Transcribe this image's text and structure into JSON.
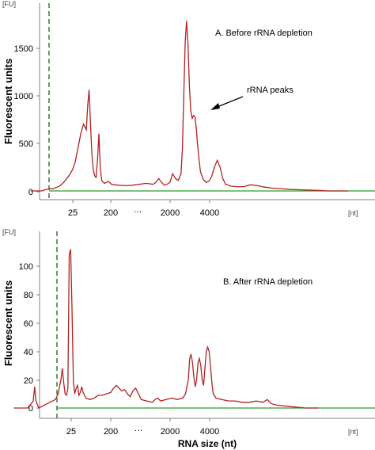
{
  "colors": {
    "trace": "#b22222",
    "baseline": "#2e9e2e",
    "marker": "#2e7d32",
    "axis": "#808080"
  },
  "chart_data": [
    {
      "type": "line",
      "title": "A. Before rRNA depletion",
      "ylabel": "Fluorescent units",
      "yunit": "[FU]",
      "xunit": "[nt]",
      "x_tick_labels": [
        "25",
        "200",
        "2000",
        "4000"
      ],
      "y_ticks": [
        0,
        500,
        1000,
        1500
      ],
      "ylim": [
        0,
        1800
      ],
      "annotation": {
        "text": "rRNA peaks",
        "arrow": true
      },
      "series": [
        {
          "values": [
            [
              22,
              0
            ],
            [
              26,
              0
            ],
            [
              30,
              0
            ],
            [
              33,
              15
            ],
            [
              36,
              25
            ],
            [
              38,
              20
            ],
            [
              40,
              35
            ],
            [
              42,
              45
            ],
            [
              44,
              65
            ],
            [
              46,
              95
            ],
            [
              48,
              130
            ],
            [
              50,
              170
            ],
            [
              52,
              220
            ],
            [
              54,
              300
            ],
            [
              56,
              450
            ],
            [
              58,
              600
            ],
            [
              60,
              700
            ],
            [
              62,
              640
            ],
            [
              63,
              900
            ],
            [
              64,
              1060
            ],
            [
              65,
              700
            ],
            [
              66,
              380
            ],
            [
              67,
              220
            ],
            [
              68,
              160
            ],
            [
              69,
              140
            ],
            [
              70,
              310
            ],
            [
              71,
              600
            ],
            [
              72,
              250
            ],
            [
              73,
              110
            ],
            [
              75,
              80
            ],
            [
              78,
              100
            ],
            [
              80,
              70
            ],
            [
              85,
              60
            ],
            [
              90,
              55
            ],
            [
              95,
              60
            ],
            [
              100,
              70
            ],
            [
              105,
              80
            ],
            [
              110,
              70
            ],
            [
              112,
              90
            ],
            [
              114,
              130
            ],
            [
              116,
              90
            ],
            [
              118,
              60
            ],
            [
              120,
              70
            ],
            [
              122,
              90
            ],
            [
              124,
              180
            ],
            [
              126,
              130
            ],
            [
              128,
              110
            ],
            [
              130,
              180
            ],
            [
              131,
              450
            ],
            [
              132,
              1000
            ],
            [
              133,
              1560
            ],
            [
              134,
              1780
            ],
            [
              135,
              1550
            ],
            [
              136,
              1100
            ],
            [
              137,
              840
            ],
            [
              138,
              760
            ],
            [
              139,
              790
            ],
            [
              140,
              780
            ],
            [
              141,
              650
            ],
            [
              142,
              470
            ],
            [
              143,
              320
            ],
            [
              144,
              200
            ],
            [
              146,
              120
            ],
            [
              148,
              90
            ],
            [
              150,
              100
            ],
            [
              152,
              150
            ],
            [
              154,
              250
            ],
            [
              156,
              320
            ],
            [
              158,
              250
            ],
            [
              160,
              130
            ],
            [
              162,
              70
            ],
            [
              166,
              50
            ],
            [
              170,
              45
            ],
            [
              175,
              45
            ],
            [
              180,
              65
            ],
            [
              185,
              55
            ],
            [
              190,
              40
            ],
            [
              195,
              30
            ],
            [
              200,
              25
            ],
            [
              210,
              15
            ],
            [
              220,
              10
            ],
            [
              230,
              5
            ],
            [
              235,
              0
            ],
            [
              240,
              0
            ],
            [
              250,
              0
            ]
          ]
        }
      ]
    },
    {
      "type": "line",
      "title": "B. After rRNA depletion",
      "ylabel": "Fluorescent units",
      "yunit": "[FU]",
      "xunit": "[nt]",
      "xlabel": "RNA size (nt)",
      "x_tick_labels": [
        "25",
        "200",
        "2000",
        "4000"
      ],
      "y_ticks": [
        0,
        20,
        40,
        60,
        80,
        100
      ],
      "ylim": [
        0,
        120
      ],
      "series": [
        {
          "values": [
            [
              10,
              0
            ],
            [
              15,
              0
            ],
            [
              20,
              0
            ],
            [
              24,
              5
            ],
            [
              25,
              15
            ],
            [
              26,
              5
            ],
            [
              28,
              0
            ],
            [
              32,
              2
            ],
            [
              36,
              4
            ],
            [
              40,
              6
            ],
            [
              42,
              10
            ],
            [
              44,
              20
            ],
            [
              45,
              28
            ],
            [
              46,
              18
            ],
            [
              47,
              10
            ],
            [
              48,
              9
            ],
            [
              49,
              14
            ],
            [
              50,
              108
            ],
            [
              51,
              112
            ],
            [
              52,
              70
            ],
            [
              53,
              18
            ],
            [
              54,
              10
            ],
            [
              55,
              14
            ],
            [
              56,
              16
            ],
            [
              57,
              9
            ],
            [
              58,
              11
            ],
            [
              59,
              15
            ],
            [
              60,
              11
            ],
            [
              62,
              7
            ],
            [
              65,
              6
            ],
            [
              68,
              7
            ],
            [
              71,
              9
            ],
            [
              74,
              9
            ],
            [
              77,
              10
            ],
            [
              80,
              11
            ],
            [
              82,
              14
            ],
            [
              84,
              16
            ],
            [
              86,
              14
            ],
            [
              88,
              12
            ],
            [
              90,
              13
            ],
            [
              92,
              10
            ],
            [
              94,
              8
            ],
            [
              96,
              12
            ],
            [
              98,
              14
            ],
            [
              100,
              10
            ],
            [
              102,
              6
            ],
            [
              106,
              5
            ],
            [
              110,
              4
            ],
            [
              112,
              6
            ],
            [
              114,
              7
            ],
            [
              116,
              5
            ],
            [
              120,
              6
            ],
            [
              124,
              7
            ],
            [
              128,
              6
            ],
            [
              132,
              7
            ],
            [
              134,
              10
            ],
            [
              136,
              20
            ],
            [
              137,
              35
            ],
            [
              138,
              38
            ],
            [
              139,
              32
            ],
            [
              140,
              22
            ],
            [
              141,
              15
            ],
            [
              142,
              20
            ],
            [
              143,
              32
            ],
            [
              144,
              35
            ],
            [
              145,
              30
            ],
            [
              146,
              20
            ],
            [
              147,
              16
            ],
            [
              148,
              28
            ],
            [
              149,
              40
            ],
            [
              150,
              43
            ],
            [
              151,
              40
            ],
            [
              152,
              30
            ],
            [
              153,
              18
            ],
            [
              154,
              10
            ],
            [
              156,
              7
            ],
            [
              160,
              6
            ],
            [
              165,
              5
            ],
            [
              170,
              5
            ],
            [
              175,
              4
            ],
            [
              180,
              4
            ],
            [
              185,
              5
            ],
            [
              190,
              4
            ],
            [
              193,
              6
            ],
            [
              196,
              3
            ],
            [
              200,
              2
            ],
            [
              210,
              1
            ],
            [
              220,
              0
            ],
            [
              230,
              0
            ]
          ]
        }
      ]
    }
  ]
}
